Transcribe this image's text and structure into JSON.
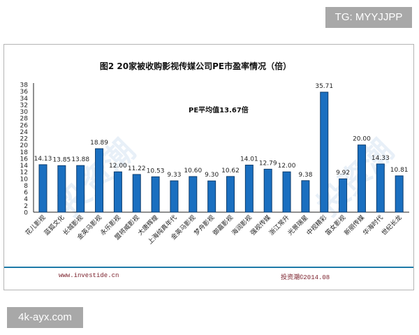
{
  "overlay": {
    "top_tag": "TG: MYYJJPP",
    "bottom_tag": "4k-ayx.com"
  },
  "footer": {
    "website": "www.investide.cn",
    "copyright": "投资潮©2014.08"
  },
  "colors": {
    "bar": "#1a6fc0",
    "bar_border": "#0d3d6e",
    "footer_line": "#1e7aa8",
    "footer_text": "#7a1f2a"
  },
  "chart_data": {
    "type": "bar",
    "title": "图2 20家被收购影视传媒公司PE市盈率情况（倍）",
    "annotation": "PE平均值13.67倍",
    "xlabel": "",
    "ylabel": "",
    "ylim": [
      0,
      38
    ],
    "yticks": [
      0,
      2,
      4,
      6,
      8,
      10,
      12,
      14,
      16,
      18,
      20,
      22,
      24,
      26,
      28,
      30,
      32,
      34,
      36,
      38
    ],
    "grid": false,
    "legend": null,
    "categories": [
      "花儿影视",
      "蓝狐文化",
      "长城影视",
      "金英马影视",
      "永乐影视",
      "盟将威影视",
      "大唐辉煌",
      "上海纯真年代",
      "金英马影视",
      "梦舟影视",
      "御嘉影视",
      "海润影视",
      "强视传媒",
      "浙江常升",
      "光景瑞星",
      "中视精彩",
      "笛女影视",
      "新丽传媒",
      "华海时代",
      "世纪长龙"
    ],
    "values": [
      14.13,
      13.85,
      13.88,
      18.89,
      12.0,
      11.22,
      10.53,
      9.33,
      10.6,
      9.3,
      10.62,
      14.01,
      12.79,
      12.0,
      9.38,
      35.71,
      9.92,
      20.0,
      14.33,
      10.81
    ],
    "value_labels": [
      "14.13",
      "13.85",
      "13.88",
      "18.89",
      "12.00",
      "11.22",
      "10.53",
      "9.33",
      "10.60",
      "9.30",
      "10.62",
      "14.01",
      "12.79",
      "12.00",
      "9.38",
      "35.71",
      "9.92",
      "20.00",
      "14.33",
      "10.81"
    ]
  }
}
